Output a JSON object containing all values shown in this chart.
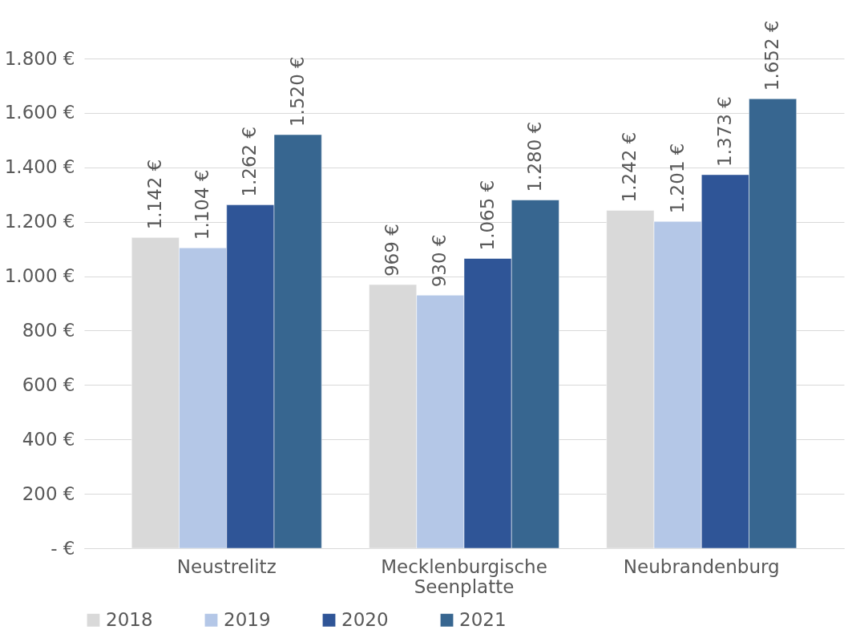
{
  "chart_data": {
    "type": "bar",
    "categories": [
      "Neustrelitz",
      "Mecklenburgische Seenplatte",
      "Neubrandenburg"
    ],
    "series": [
      {
        "name": "2018",
        "color": "#d9d9d9",
        "values": [
          1142,
          969,
          1242
        ],
        "value_labels": [
          "1.142 €",
          "969 €",
          "1.242 €"
        ]
      },
      {
        "name": "2019",
        "color": "#b4c7e7",
        "values": [
          1104,
          930,
          1201
        ],
        "value_labels": [
          "1.104 €",
          "930 €",
          "1.201 €"
        ]
      },
      {
        "name": "2020",
        "color": "#2f5597",
        "values": [
          1262,
          1065,
          1373
        ],
        "value_labels": [
          "1.262 €",
          "1.065 €",
          "1.373 €"
        ]
      },
      {
        "name": "2021",
        "color": "#376690",
        "values": [
          1520,
          1280,
          1652
        ],
        "value_labels": [
          "1.520 €",
          "1.280 €",
          "1.652 €"
        ]
      }
    ],
    "ylim": [
      0,
      1800
    ],
    "yticks": [
      {
        "value": 0,
        "label": "-   €"
      },
      {
        "value": 200,
        "label": "200 €"
      },
      {
        "value": 400,
        "label": "400 €"
      },
      {
        "value": 600,
        "label": "600 €"
      },
      {
        "value": 800,
        "label": "800 €"
      },
      {
        "value": 1000,
        "label": "1.000 €"
      },
      {
        "value": 1200,
        "label": "1.200 €"
      },
      {
        "value": 1400,
        "label": "1.400 €"
      },
      {
        "value": 1600,
        "label": "1.600 €"
      },
      {
        "value": 1800,
        "label": "1.800 €"
      }
    ],
    "grid": "y",
    "legend": "bottom"
  }
}
